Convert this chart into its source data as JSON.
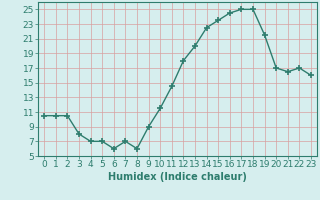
{
  "x": [
    0,
    1,
    2,
    3,
    4,
    5,
    6,
    7,
    8,
    9,
    10,
    11,
    12,
    13,
    14,
    15,
    16,
    17,
    18,
    19,
    20,
    21,
    22,
    23
  ],
  "y": [
    10.5,
    10.5,
    10.5,
    8.0,
    7.0,
    7.0,
    6.0,
    7.0,
    6.0,
    9.0,
    11.5,
    14.5,
    18.0,
    20.0,
    22.5,
    23.5,
    24.5,
    25.0,
    25.0,
    21.5,
    17.0,
    16.5,
    17.0,
    16.0
  ],
  "line_color": "#2e7d6e",
  "marker": "+",
  "marker_size": 4,
  "marker_lw": 1.2,
  "line_width": 1.0,
  "background_color": "#d6eeee",
  "grid_color": "#c0d8d8",
  "xlabel": "Humidex (Indice chaleur)",
  "xlim": [
    -0.5,
    23.5
  ],
  "ylim": [
    5,
    26
  ],
  "yticks": [
    5,
    7,
    9,
    11,
    13,
    15,
    17,
    19,
    21,
    23,
    25
  ],
  "xticks": [
    0,
    1,
    2,
    3,
    4,
    5,
    6,
    7,
    8,
    9,
    10,
    11,
    12,
    13,
    14,
    15,
    16,
    17,
    18,
    19,
    20,
    21,
    22,
    23
  ],
  "xlabel_fontsize": 7,
  "tick_fontsize": 6.5
}
